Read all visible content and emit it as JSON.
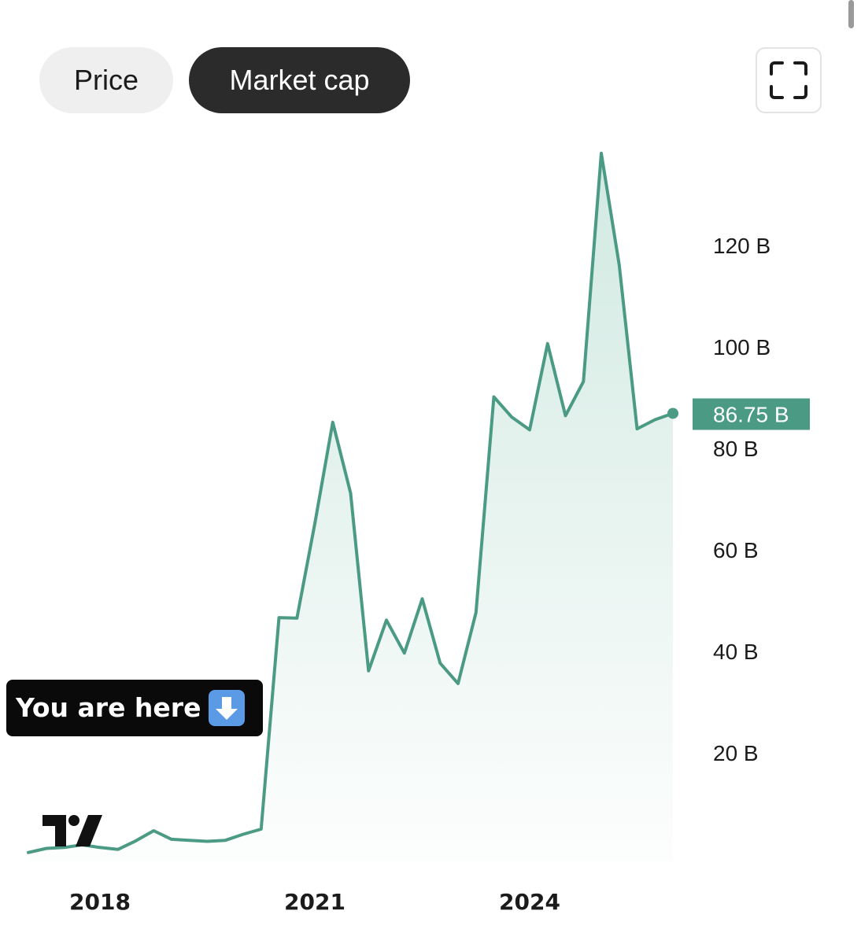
{
  "tabs": [
    {
      "label": "Price",
      "active": false
    },
    {
      "label": "Market cap",
      "active": true
    }
  ],
  "fullscreen": {
    "icon": "fullscreen-icon"
  },
  "callout": {
    "text": "You are here",
    "icon": "down-arrow-icon"
  },
  "logo": {
    "icon": "tradingview-logo-icon"
  },
  "chart_data": {
    "type": "area",
    "title": "",
    "xlabel": "",
    "ylabel": "",
    "x_ticks": [
      "2018",
      "2021",
      "2024"
    ],
    "y_ticks": [
      "20 B",
      "40 B",
      "60 B",
      "80 B",
      "100 B",
      "120 B"
    ],
    "ylim": [
      0,
      140
    ],
    "current_value_label": "86.75 B",
    "line_color": "#4a9a84",
    "fill_color": "#cfe8e0",
    "series": [
      {
        "x": [
          2017.33,
          2017.58,
          2017.83,
          2018.08,
          2018.33,
          2018.58,
          2018.83,
          2019.08,
          2019.33,
          2019.58,
          2019.83,
          2020.08,
          2020.33,
          2020.58,
          2020.83,
          2021.08,
          2021.33,
          2021.58,
          2021.83,
          2022.08,
          2022.33,
          2022.58,
          2022.83,
          2023.08,
          2023.33,
          2023.58,
          2023.83,
          2024.08,
          2024.33,
          2024.58,
          2024.83,
          2025.08,
          2025.33,
          2025.58,
          2025.83,
          2026.08,
          2026.33
        ],
        "values": [
          0.2,
          1.0,
          1.2,
          1.7,
          1.2,
          0.8,
          2.5,
          4.5,
          2.8,
          2.6,
          2.4,
          2.6,
          3.8,
          4.8,
          46.5,
          46.4,
          65.0,
          85.0,
          71.0,
          36.0,
          46.0,
          39.5,
          50.2,
          37.5,
          33.5,
          47.5,
          90.0,
          86.0,
          83.5,
          100.5,
          86.3,
          93.0,
          138.0,
          116.0,
          83.7,
          85.5,
          86.75
        ]
      }
    ]
  }
}
